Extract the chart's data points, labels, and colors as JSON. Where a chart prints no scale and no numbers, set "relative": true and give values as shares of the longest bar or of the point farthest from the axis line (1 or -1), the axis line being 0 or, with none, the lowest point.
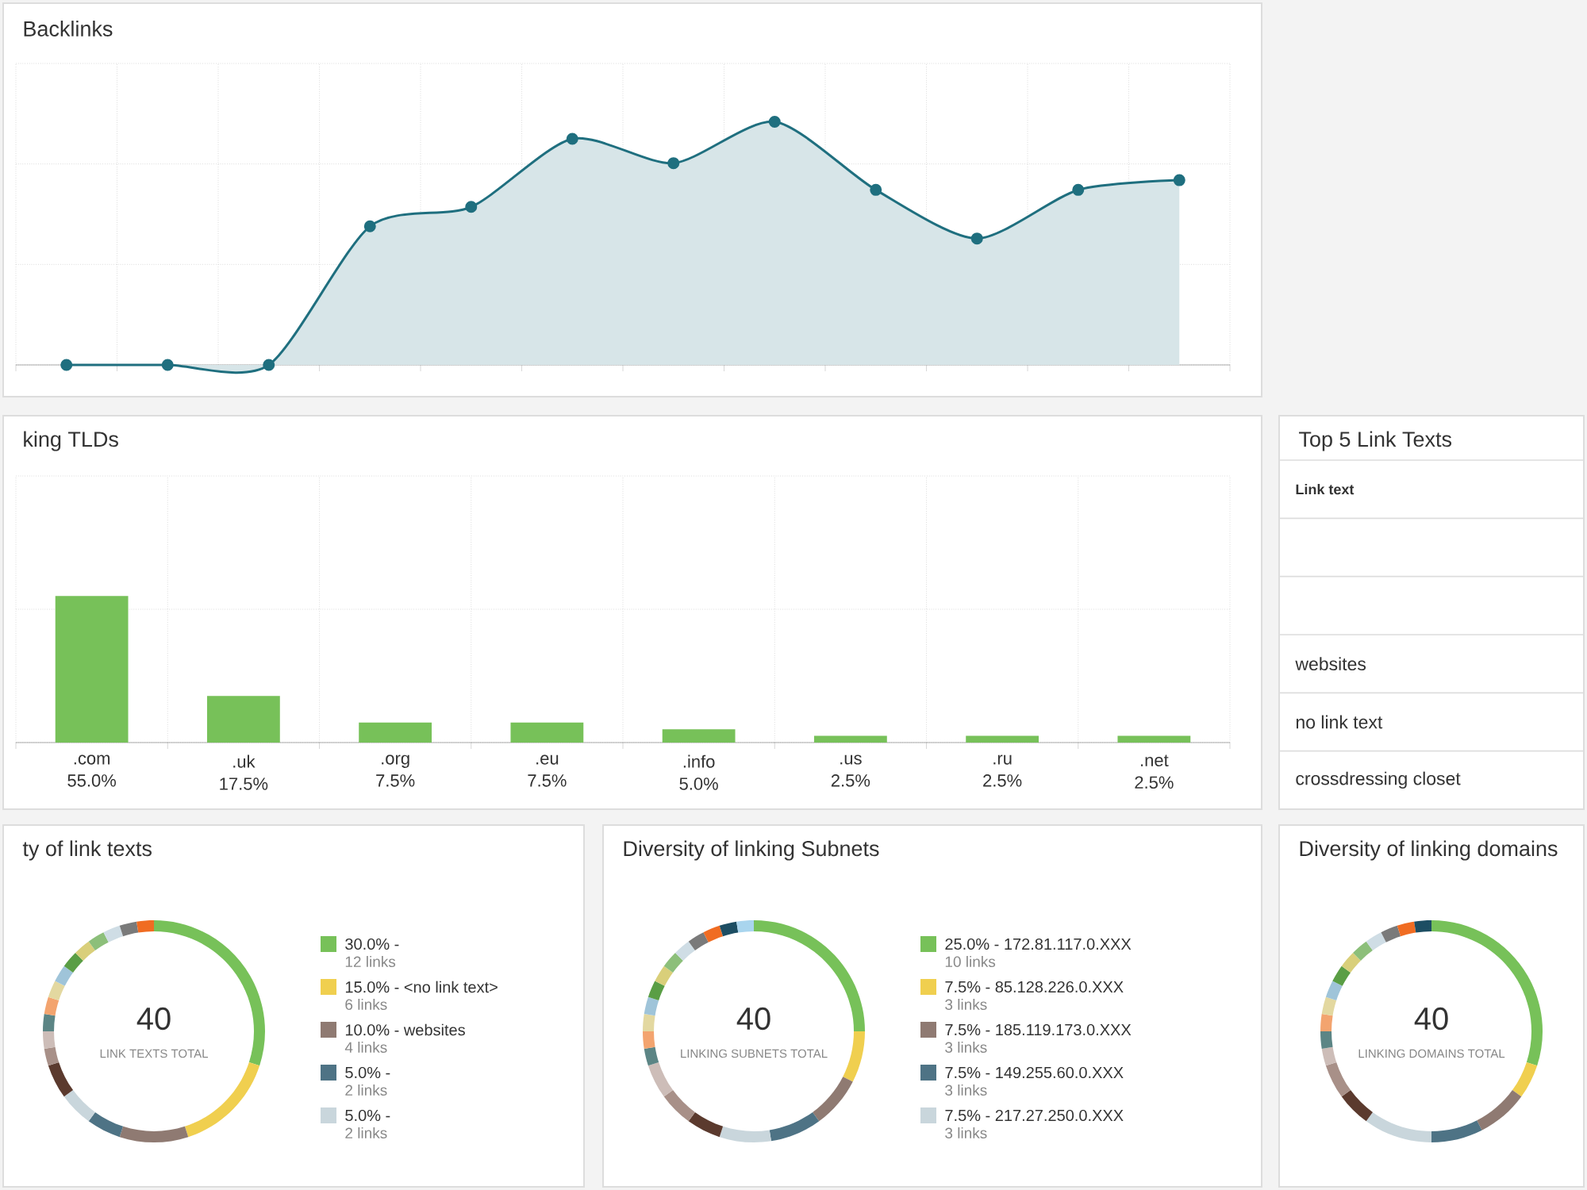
{
  "chart_data": [
    {
      "type": "area",
      "title": "Backlinks",
      "categories": [
        null,
        null,
        null,
        null,
        null,
        null,
        null,
        null,
        null,
        null,
        null,
        null
      ],
      "values": [
        0,
        0,
        0,
        0.57,
        0.65,
        0.93,
        0.83,
        1,
        0.72,
        0.52,
        0.72,
        0.76
      ],
      "color": "#1f6f7f",
      "relative": true,
      "grid": true,
      "marker": "circle"
    },
    {
      "type": "bar",
      "title": "king TLDs",
      "categories": [
        ".com",
        ".uk",
        ".org",
        ".eu",
        ".info",
        ".us",
        ".ru",
        ".net"
      ],
      "values": [
        55,
        17.5,
        7.5,
        7.5,
        5,
        2.5,
        2.5,
        2.5
      ],
      "value_labels": [
        "55.0%",
        "17.5%",
        "7.5%",
        "7.5%",
        "5.0%",
        "2.5%",
        "2.5%",
        "2.5%"
      ],
      "color": "#77c159",
      "ylim": [
        0,
        100
      ],
      "yticks": [
        {
          "value": 0,
          "label": null
        },
        {
          "value": 50,
          "label": null
        },
        {
          "value": 100,
          "label": null
        }
      ],
      "tick_labels": "x",
      "grid": true
    },
    {
      "type": "other",
      "title": "Top 5 Link Texts",
      "annotations": [
        "Link text",
        "websites",
        "no link text",
        "crossdressing closet"
      ]
    },
    {
      "type": "donut",
      "title": "ty of link texts",
      "categories": [
        "30.0% -",
        "15.0% - <no link text>",
        "10.0% - websites",
        "5.0% -",
        "5.0% -",
        null,
        null,
        null,
        null,
        null,
        null,
        null,
        null,
        null,
        null,
        null,
        null,
        null
      ],
      "values": [
        30,
        15,
        10,
        5,
        5,
        5,
        2.5,
        2.5,
        2.5,
        2.5,
        2.5,
        2.5,
        2.5,
        2.5,
        2.5,
        2.5,
        2.5,
        2.5
      ],
      "colors": [
        "#77c159",
        "#f0cf4f",
        "#8f7a72",
        "#4e7385",
        "#c9d6dc",
        "#5b3a2e",
        "#a89088",
        "#cdbdb8",
        "#5c8585",
        "#f3a46f",
        "#e3d8a0",
        "#9fc4d9",
        "#5a9e45",
        "#d9cf7a",
        "#8cbf7a",
        "#cfdde5",
        "#7a7a7a",
        "#f06c22"
      ],
      "legend": "right",
      "annotations": [
        "40",
        "LINK TEXTS TOTAL",
        "12 links",
        "6 links",
        "4 links",
        "2 links",
        "2 links"
      ]
    },
    {
      "type": "donut",
      "title": "Diversity of linking Subnets",
      "categories": [
        "25.0% - 172.81.117.0.XXX",
        "7.5% - 85.128.226.0.XXX",
        "7.5% - 185.119.173.0.XXX",
        "7.5% - 149.255.60.0.XXX",
        "7.5% - 217.27.250.0.XXX",
        null,
        null,
        null,
        null,
        null,
        null,
        null,
        null,
        null,
        null,
        null,
        null,
        null,
        null,
        null
      ],
      "values": [
        25,
        7.5,
        7.5,
        7.5,
        7.5,
        5,
        5,
        5,
        2.5,
        2.5,
        2.5,
        2.5,
        2.5,
        2.5,
        2.5,
        2.5,
        2.5,
        2.5,
        2.5,
        2.5
      ],
      "colors": [
        "#77c159",
        "#f0cf4f",
        "#8f7a72",
        "#4e7385",
        "#c9d6dc",
        "#5b3a2e",
        "#a89088",
        "#cdbdb8",
        "#5c8585",
        "#f3a46f",
        "#e3d8a0",
        "#9fc4d9",
        "#5a9e45",
        "#d9cf7a",
        "#8cbf7a",
        "#cfdde5",
        "#7a7a7a",
        "#f06c22",
        "#1d4e63",
        "#a9d5ee"
      ],
      "legend": "right",
      "annotations": [
        "40",
        "LINKING SUBNETS TOTAL",
        "10 links",
        "3 links",
        "3 links",
        "3 links",
        "3 links"
      ]
    },
    {
      "type": "donut",
      "title": "Diversity of linking domains",
      "categories": [
        null,
        null,
        null,
        null,
        null,
        null,
        null,
        null,
        null,
        null,
        null,
        null,
        null,
        null,
        null,
        null,
        null,
        null,
        null
      ],
      "values": [
        30,
        5,
        7.5,
        7.5,
        10,
        5,
        5,
        2.5,
        2.5,
        2.5,
        2.5,
        2.5,
        2.5,
        2.5,
        2.5,
        2.5,
        2.5,
        2.5,
        2.5
      ],
      "colors": [
        "#77c159",
        "#f0cf4f",
        "#8f7a72",
        "#4e7385",
        "#c9d6dc",
        "#5b3a2e",
        "#a89088",
        "#cdbdb8",
        "#5c8585",
        "#f3a46f",
        "#e3d8a0",
        "#9fc4d9",
        "#5a9e45",
        "#d9cf7a",
        "#8cbf7a",
        "#cfdde5",
        "#7a7a7a",
        "#f06c22",
        "#1d4e63"
      ],
      "annotations": [
        "40",
        "LINKING DOMAINS TOTAL"
      ]
    }
  ]
}
